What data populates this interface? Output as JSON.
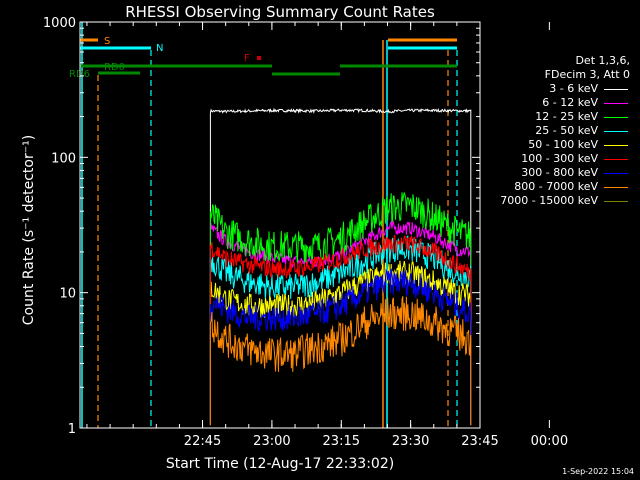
{
  "chart_data": {
    "type": "line",
    "title": "RHESSI Observing Summary Count Rates",
    "xlabel": "Start Time (12-Aug-17 22:33:02)",
    "ylabel": "Count Rate (s⁻¹ detector⁻¹)",
    "y_log": true,
    "ylim": [
      1,
      1000
    ],
    "xlim_minutes": [
      -41.5,
      45
    ],
    "x_ticks": [
      {
        "label": "22:45",
        "t": -15
      },
      {
        "label": "23:00",
        "t": 0
      },
      {
        "label": "23:15",
        "t": 15
      },
      {
        "label": "23:30",
        "t": 30
      },
      {
        "label": "23:45",
        "t": 45
      },
      {
        "label": "00:00",
        "t": 60
      }
    ],
    "y_ticks": [
      {
        "label": "1",
        "v": 1
      },
      {
        "label": "10",
        "v": 10
      },
      {
        "label": "100",
        "v": 100
      },
      {
        "label": "1000",
        "v": 1000
      }
    ],
    "legend_header": [
      "Det 1,3,6,",
      "FDecim 3, Att 0"
    ],
    "flags": [
      {
        "label": "S",
        "color": "#ff8800"
      },
      {
        "label": "N",
        "color": "#00ffff"
      },
      {
        "label": "F",
        "color": "#cc0000"
      },
      {
        "label": "RD0",
        "color": "#008800"
      },
      {
        "label": "RD6",
        "color": "#008800"
      }
    ],
    "series": [
      {
        "name": "3 - 6 keV",
        "color": "#ffffff",
        "x_minutes": [
          -13.3,
          -10,
          -5,
          0,
          5,
          10,
          15,
          20,
          25,
          30,
          35,
          40,
          43
        ],
        "values": [
          220,
          218,
          220,
          222,
          221,
          220,
          223,
          222,
          218,
          222,
          222,
          221,
          220
        ]
      },
      {
        "name": "6 - 12 keV",
        "color": "#ff00ff",
        "x_minutes": [
          -13.3,
          -10,
          -5,
          0,
          5,
          10,
          15,
          20,
          25,
          30,
          35,
          40,
          43
        ],
        "values": [
          30,
          24,
          20,
          18,
          17,
          17,
          19,
          24,
          30,
          30,
          26,
          21,
          20
        ]
      },
      {
        "name": "12 - 25 keV",
        "color": "#00ff00",
        "x_minutes": [
          -13.3,
          -10,
          -5,
          0,
          5,
          10,
          15,
          20,
          25,
          30,
          35,
          40,
          43
        ],
        "values": [
          38,
          28,
          24,
          22,
          22,
          22,
          25,
          33,
          42,
          44,
          36,
          28,
          26
        ]
      },
      {
        "name": "25 - 50 keV",
        "color": "#00ffff",
        "x_minutes": [
          -13.3,
          -10,
          -5,
          0,
          5,
          10,
          15,
          20,
          25,
          30,
          35,
          40,
          43
        ],
        "values": [
          18,
          14,
          12,
          11,
          11,
          12,
          14,
          17,
          21,
          21,
          18,
          14,
          13
        ]
      },
      {
        "name": "50 - 100 keV",
        "color": "#ffff00",
        "x_minutes": [
          -13.3,
          -10,
          -5,
          0,
          5,
          10,
          15,
          20,
          25,
          30,
          35,
          40,
          43
        ],
        "values": [
          11,
          9,
          8,
          8,
          8,
          8.5,
          10,
          12,
          14,
          14,
          12,
          10,
          9.5
        ]
      },
      {
        "name": "100 - 300 keV",
        "color": "#ff0000",
        "x_minutes": [
          -13.3,
          -10,
          -5,
          0,
          5,
          10,
          15,
          20,
          25,
          30,
          35,
          40,
          43
        ],
        "values": [
          22,
          18,
          16,
          15,
          15,
          16,
          18,
          21,
          23,
          23,
          20,
          16,
          14
        ]
      },
      {
        "name": "300 - 800 keV",
        "color": "#0000ff",
        "x_minutes": [
          -13.3,
          -10,
          -5,
          0,
          5,
          10,
          15,
          20,
          25,
          30,
          35,
          40,
          43
        ],
        "values": [
          9,
          7.5,
          6.5,
          6.5,
          6.5,
          7,
          8,
          10,
          12,
          12,
          10,
          8,
          7
        ]
      },
      {
        "name": "800 - 7000 keV",
        "color": "#ff8800",
        "x_minutes": [
          -13.3,
          -10,
          -5,
          0,
          5,
          10,
          15,
          20,
          25,
          30,
          35,
          40,
          43
        ],
        "values": [
          6,
          4.5,
          3.8,
          3.5,
          3.5,
          4,
          4.5,
          6,
          7,
          7,
          6,
          5,
          4.5
        ]
      },
      {
        "name": "7000 - 15000 keV",
        "color": "#808000",
        "x_minutes": [],
        "values": []
      }
    ]
  },
  "timestamp": "1-Sep-2022 15:04"
}
